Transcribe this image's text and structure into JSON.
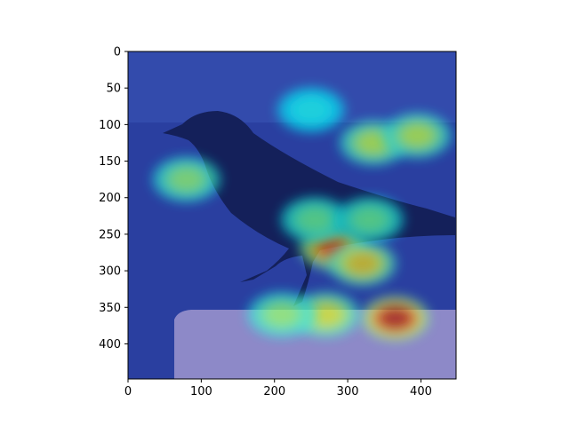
{
  "chart_data": {
    "type": "heatmap",
    "image_size": [
      448,
      448
    ],
    "xlim": [
      0,
      448
    ],
    "ylim": [
      448,
      0
    ],
    "x_ticks": [
      0,
      100,
      200,
      300,
      400
    ],
    "y_ticks": [
      0,
      50,
      100,
      150,
      200,
      250,
      300,
      350,
      400
    ],
    "colormap": "jet",
    "overlay_alpha": 0.5,
    "underlying_image": "crow perched on a stone ledge",
    "colors": {
      "background": "#2a3fa0",
      "ledge": "#8d89c8",
      "bird": "#14205a"
    },
    "activation_hotspots": [
      {
        "x": 365,
        "y": 365,
        "intensity": 1.0
      },
      {
        "x": 280,
        "y": 268,
        "intensity": 0.85
      },
      {
        "x": 335,
        "y": 125,
        "intensity": 0.6
      },
      {
        "x": 395,
        "y": 115,
        "intensity": 0.6
      },
      {
        "x": 320,
        "y": 290,
        "intensity": 0.7
      },
      {
        "x": 270,
        "y": 360,
        "intensity": 0.65
      },
      {
        "x": 210,
        "y": 360,
        "intensity": 0.55
      },
      {
        "x": 80,
        "y": 175,
        "intensity": 0.55
      },
      {
        "x": 255,
        "y": 230,
        "intensity": 0.5
      },
      {
        "x": 330,
        "y": 230,
        "intensity": 0.5
      },
      {
        "x": 250,
        "y": 80,
        "intensity": 0.4
      }
    ]
  }
}
